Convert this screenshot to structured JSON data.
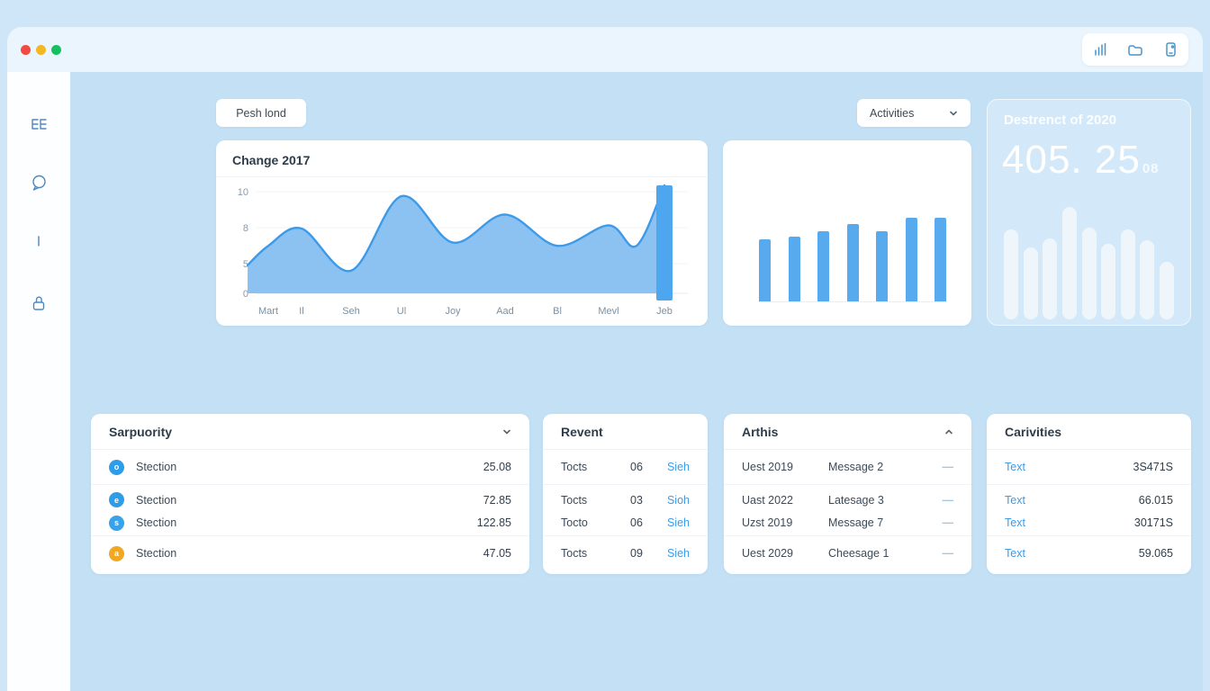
{
  "chrome": {
    "traffic_lights": [
      {
        "name": "close",
        "color": "#f04a45"
      },
      {
        "name": "minimize",
        "color": "#f3b71f"
      },
      {
        "name": "maximize",
        "color": "#17bf63"
      }
    ],
    "toolbar_icons": [
      "signal-bars-icon",
      "folder-icon",
      "device-icon"
    ]
  },
  "sidebar": {
    "icons": [
      "grid-icon",
      "chat-icon",
      "divider-icon",
      "lock-icon"
    ]
  },
  "controls": {
    "push_button_label": "Pesh lond",
    "dropdown_label": "Activities"
  },
  "line_chart_card": {
    "title": "Change 2017",
    "chart_data": {
      "type": "area",
      "categories": [
        "Mart",
        "Il",
        "Seh",
        "Ul",
        "Joy",
        "Aad",
        "Bl",
        "Mevl",
        "Jeb"
      ],
      "values": [
        4.4,
        6.0,
        2.1,
        9.0,
        4.7,
        7.3,
        4.4,
        6.3,
        10
      ],
      "yticks": [
        10,
        8,
        5,
        0
      ],
      "ylim": [
        0,
        10
      ],
      "highlight_category": "Jeb",
      "line_color": "#3d9ae8",
      "fill_color": "#8cc2f1",
      "highlight_bar_color": "#4da6ee",
      "grid": true,
      "legend": false
    }
  },
  "bar_chart_card": {
    "chart_data": {
      "type": "bar",
      "categories": [
        "",
        "",
        "",
        "",
        "",
        "",
        ""
      ],
      "values": [
        69,
        72,
        78,
        86,
        78,
        93,
        93
      ],
      "bar_color": "#57aaee",
      "grid": false,
      "legend": false
    }
  },
  "stat_card": {
    "title": "Destrenct of 2020",
    "value": "405. 25",
    "value_suffix": "08",
    "chart_data": {
      "type": "bar",
      "categories": [
        "",
        "",
        "",
        "",
        "",
        "",
        "",
        "",
        ""
      ],
      "values": [
        100,
        80,
        90,
        125,
        102,
        84,
        100,
        88,
        64
      ],
      "bar_color": "rgba(255,255,255,0.62)",
      "grid": false,
      "legend": false
    }
  },
  "sarpuority_card": {
    "title": "Sarpuority",
    "header_icon": "chevron-down-icon",
    "rows": [
      {
        "icon_glyph": "o",
        "icon_color": "#2d9ce9",
        "label": "Stection",
        "value": "25.08"
      },
      {
        "icon_glyph": "e",
        "icon_color": "#2d9ce9",
        "label": "Stection",
        "value": "72.85"
      },
      {
        "icon_glyph": "s",
        "icon_color": "#38a2ea",
        "label": "Stection",
        "value": "122.85"
      },
      {
        "icon_glyph": "a",
        "icon_color": "#f1a722",
        "label": "Stection",
        "value": "47.05"
      }
    ]
  },
  "revent_card": {
    "title": "Revent",
    "rows": [
      {
        "name": "Tocts",
        "qty": "06",
        "link": "Sieh"
      },
      {
        "name": "Tocts",
        "qty": "03",
        "link": "Sioh"
      },
      {
        "name": "Tocto",
        "qty": "06",
        "link": "Sieh"
      },
      {
        "name": "Tocts",
        "qty": "09",
        "link": "Sieh"
      }
    ]
  },
  "arthis_card": {
    "title": "Arthis",
    "header_icon": "chevron-up-icon",
    "rows": [
      {
        "date": "Uest 2019",
        "message": "Message 2",
        "action": "—"
      },
      {
        "date": "Uast 2022",
        "message": "Latesage 3",
        "action": "—"
      },
      {
        "date": "Uzst 2019",
        "message": "Message 7",
        "action": "—"
      },
      {
        "date": "Uest 2029",
        "message": "Cheesage 1",
        "action": "—"
      }
    ]
  },
  "carivities_card": {
    "title": "Carivities",
    "rows": [
      {
        "link": "Text",
        "value": "3S471S"
      },
      {
        "link": "Text",
        "value": "66.015"
      },
      {
        "link": "Text",
        "value": "30171S"
      },
      {
        "link": "Text",
        "value": "59.065"
      }
    ]
  },
  "colors": {
    "accent_blue": "#3d9ae8",
    "page_background": "#c3e0f5",
    "topbar_background": "#eaf5fd",
    "link_blue": "#3f9ae4"
  }
}
